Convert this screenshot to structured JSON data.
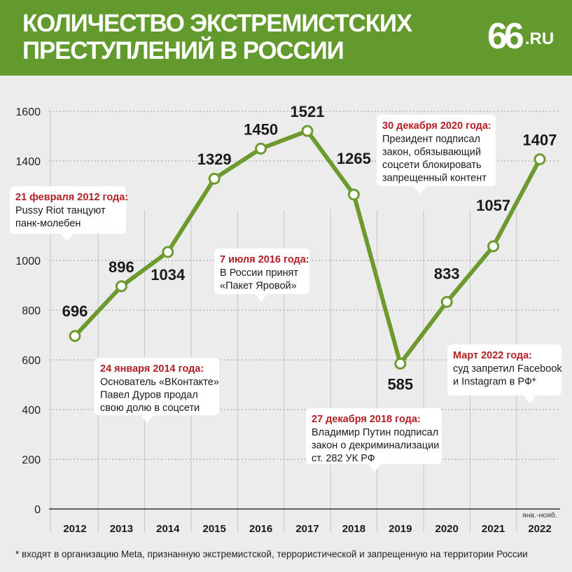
{
  "header": {
    "title_line1": "КОЛИЧЕСТВО ЭКСТРЕМИСТСКИХ",
    "title_line2": "ПРЕСТУПЛЕНИЙ В РОССИИ",
    "logo_number": "66",
    "logo_suffix": ".RU"
  },
  "colors": {
    "header_bg": "#629a2d",
    "line": "#6d9a2e",
    "date_red": "#b11f24",
    "background": "#ececec"
  },
  "chart_data": {
    "type": "line",
    "title": "КОЛИЧЕСТВО ЭКСТРЕМИСТСКИХ ПРЕСТУПЛЕНИЙ В РОССИИ",
    "categories": [
      "2012",
      "2013",
      "2014",
      "2015",
      "2016",
      "2017",
      "2018",
      "2019",
      "2020",
      "2021",
      "2022"
    ],
    "values": [
      696,
      896,
      1034,
      1329,
      1450,
      1521,
      1265,
      585,
      833,
      1057,
      1407
    ],
    "value_labels": [
      "696",
      "896",
      "1034",
      "1329",
      "1450",
      "1521",
      "1265",
      "585",
      "833",
      "1057",
      "1407"
    ],
    "y_ticks": [
      "0",
      "200",
      "400",
      "600",
      "800",
      "1000",
      "1400",
      "1600"
    ],
    "y_tick_values": [
      0,
      200,
      400,
      600,
      800,
      1000,
      1400,
      1600
    ],
    "ylim": [
      0,
      1600
    ],
    "last_period_note": "янв.-нояб.",
    "grid": "horizontal dashed at each tick; vertical lines at each year",
    "annotations": [
      {
        "date": "21 февраля 2012 года:",
        "lines": [
          "Pussy Riot танцуют",
          "панк-молебен"
        ]
      },
      {
        "date": "24 января 2014 года:",
        "lines": [
          "Основатель «ВКонтакте»",
          "Павел Дуров продал",
          "свою долю в соцсети"
        ]
      },
      {
        "date": "7 июля 2016 года:",
        "lines": [
          "В России принят",
          "«Пакет Яровой»"
        ]
      },
      {
        "date": "27 декабря 2018 года:",
        "lines": [
          "Владимир Путин подписал",
          "закон о декриминализации",
          "ст. 282  УК РФ"
        ]
      },
      {
        "date": "30 декабря 2020 года:",
        "lines": [
          "Президент подписал",
          "закон, обязывающий",
          "соцсети блокировать",
          "запрещенный контент"
        ]
      },
      {
        "date": "Март 2022 года:",
        "lines": [
          "суд запретил Facebook",
          "и Instagram в РФ*"
        ]
      }
    ]
  },
  "footnote": "* входят в организацию Meta, признанную экстремистской, террористической и запрещенную на территории России"
}
